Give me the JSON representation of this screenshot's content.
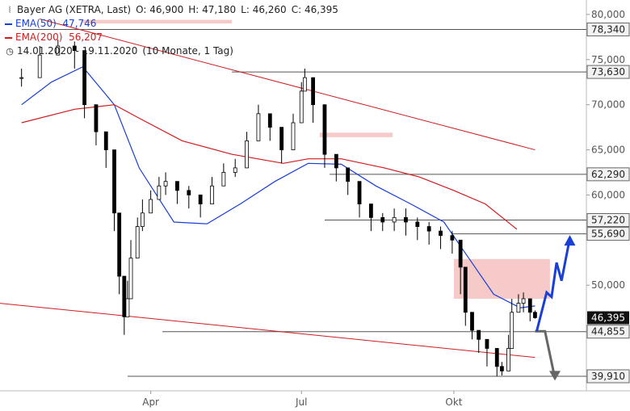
{
  "legend": {
    "symbol": "Bayer AG (XETRA, Last)",
    "ohlc": {
      "o_label": "O:",
      "o": "46,900",
      "h_label": "H:",
      "h": "47,180",
      "l_label": "L:",
      "l": "46,260",
      "c_label": "C:",
      "c": "46,395"
    },
    "ema50": {
      "label": "EMA(50)",
      "value": "47,746",
      "color": "#1a3fd6"
    },
    "ema200": {
      "label": "EMA(200)",
      "value": "56,207",
      "color": "#d11c1c"
    },
    "range": "14.01.2020 - 19.11.2020",
    "period": "(10 Monate, 1 Tag)"
  },
  "chart_data": {
    "type": "candlestick",
    "ylim": [
      38.3,
      81.6
    ],
    "y_ticks": [
      {
        "v": 80,
        "label": "80,000"
      },
      {
        "v": 75,
        "label": "75,000"
      },
      {
        "v": 70,
        "label": "70,000"
      },
      {
        "v": 65,
        "label": "65,000"
      },
      {
        "v": 60,
        "label": "60,000"
      },
      {
        "v": 50,
        "label": "50,000"
      }
    ],
    "x_ticks": [
      "Apr",
      "Jul",
      "Okt"
    ],
    "price_levels": [
      {
        "v": 78.34,
        "label": "78,340"
      },
      {
        "v": 73.63,
        "label": "73,630"
      },
      {
        "v": 62.29,
        "label": "62,290"
      },
      {
        "v": 57.22,
        "label": "57,220"
      },
      {
        "v": 55.69,
        "label": "55,690"
      },
      {
        "v": 44.855,
        "label": "44,855"
      },
      {
        "v": 39.91,
        "label": "39,910"
      }
    ],
    "last_price": {
      "v": 46.395,
      "label": "46,395"
    },
    "series": [
      {
        "name": "EMA(50)",
        "color": "#1a3fd6",
        "x": [
          "2020-01-14",
          "2020-02-01",
          "2020-02-20",
          "2020-03-10",
          "2020-03-25",
          "2020-04-15",
          "2020-05-05",
          "2020-05-25",
          "2020-06-15",
          "2020-07-05",
          "2020-07-25",
          "2020-08-15",
          "2020-09-05",
          "2020-09-25",
          "2020-10-10",
          "2020-10-25",
          "2020-11-10",
          "2020-11-19"
        ],
        "values": [
          70.0,
          72.5,
          74.2,
          70.0,
          63.0,
          57.0,
          56.8,
          59.0,
          61.5,
          63.5,
          63.4,
          61.0,
          59.0,
          57.0,
          53.0,
          49.0,
          47.5,
          47.7
        ]
      },
      {
        "name": "EMA(200)",
        "color": "#d11c1c",
        "x": [
          "2020-01-14",
          "2020-02-15",
          "2020-03-10",
          "2020-03-25",
          "2020-04-20",
          "2020-05-20",
          "2020-06-20",
          "2020-07-05",
          "2020-07-25",
          "2020-08-20",
          "2020-09-10",
          "2020-10-01",
          "2020-10-20",
          "2020-11-08"
        ],
        "values": [
          68.0,
          69.5,
          70.0,
          68.5,
          66.0,
          64.5,
          63.5,
          64.0,
          64.0,
          63.0,
          62.0,
          60.5,
          59.0,
          56.2
        ]
      }
    ],
    "candles": {
      "x": [
        "2020-01-14",
        "2020-01-25",
        "2020-02-05",
        "2020-02-15",
        "2020-02-21",
        "2020-02-28",
        "2020-03-05",
        "2020-03-10",
        "2020-03-13",
        "2020-03-16",
        "2020-03-18",
        "2020-03-20",
        "2020-03-24",
        "2020-03-27",
        "2020-04-01",
        "2020-04-06",
        "2020-04-10",
        "2020-04-17",
        "2020-04-24",
        "2020-05-01",
        "2020-05-08",
        "2020-05-15",
        "2020-05-22",
        "2020-05-29",
        "2020-06-05",
        "2020-06-12",
        "2020-06-19",
        "2020-06-26",
        "2020-07-01",
        "2020-07-03",
        "2020-07-08",
        "2020-07-15",
        "2020-07-22",
        "2020-07-29",
        "2020-08-05",
        "2020-08-12",
        "2020-08-19",
        "2020-08-26",
        "2020-09-02",
        "2020-09-09",
        "2020-09-16",
        "2020-09-23",
        "2020-09-30",
        "2020-10-05",
        "2020-10-08",
        "2020-10-12",
        "2020-10-16",
        "2020-10-21",
        "2020-10-27",
        "2020-10-30",
        "2020-11-03",
        "2020-11-05",
        "2020-11-09",
        "2020-11-12",
        "2020-11-16",
        "2020-11-19"
      ],
      "close": [
        73.0,
        75.5,
        76.5,
        76.0,
        70.0,
        67.0,
        65.0,
        58.0,
        51.0,
        46.5,
        48.5,
        53.0,
        56.5,
        58.0,
        59.5,
        61.0,
        61.5,
        60.5,
        60.0,
        59.0,
        61.0,
        62.5,
        63.0,
        66.0,
        69.0,
        67.5,
        65.0,
        68.0,
        71.5,
        73.0,
        70.0,
        64.5,
        63.0,
        61.5,
        59.0,
        57.5,
        57.0,
        57.5,
        57.0,
        56.5,
        56.0,
        55.5,
        55.0,
        52.0,
        47.0,
        45.0,
        44.0,
        43.0,
        41.0,
        40.5,
        43.0,
        47.0,
        48.0,
        48.5,
        47.0,
        46.4
      ],
      "high": [
        74.0,
        76.5,
        77.2,
        77.0,
        71.0,
        68.0,
        66.0,
        59.0,
        52.5,
        48.0,
        50.5,
        55.0,
        57.5,
        59.5,
        60.5,
        62.0,
        62.5,
        61.5,
        61.0,
        60.0,
        62.0,
        63.5,
        64.0,
        67.0,
        70.0,
        68.5,
        66.5,
        69.0,
        72.5,
        74.0,
        71.0,
        65.5,
        64.0,
        62.5,
        60.0,
        58.5,
        58.0,
        58.5,
        58.5,
        57.5,
        57.0,
        56.5,
        56.0,
        53.0,
        48.5,
        46.0,
        45.0,
        44.0,
        42.0,
        41.5,
        44.5,
        48.5,
        49.0,
        49.2,
        48.0,
        47.2
      ],
      "low": [
        72.0,
        74.5,
        75.5,
        74.0,
        68.5,
        65.5,
        63.0,
        56.0,
        49.0,
        44.5,
        46.5,
        51.0,
        55.0,
        56.0,
        58.0,
        59.5,
        60.0,
        59.0,
        58.5,
        57.5,
        59.5,
        61.0,
        62.0,
        64.5,
        67.0,
        66.0,
        63.5,
        66.0,
        69.5,
        71.5,
        68.0,
        63.0,
        61.5,
        60.0,
        57.5,
        56.0,
        56.0,
        56.0,
        55.5,
        55.0,
        54.5,
        54.0,
        53.5,
        49.0,
        45.5,
        44.0,
        42.5,
        41.0,
        39.9,
        40.0,
        42.0,
        45.0,
        47.0,
        47.0,
        46.0,
        46.3
      ]
    },
    "overlays": {
      "red_channel": {
        "upper": [
          [
            "2020-01-25",
            79.5
          ],
          [
            "2020-11-19",
            65.0
          ]
        ],
        "lower": [
          [
            "2020-01-14",
            48.0
          ],
          [
            "2020-11-19",
            42.0
          ]
        ]
      },
      "pink_zones": [
        {
          "x0": "2020-02-20",
          "x1": "2020-05-20",
          "y0": 79.0,
          "y1": 79.4
        },
        {
          "x0": "2020-07-12",
          "x1": "2020-08-25",
          "y0": 66.4,
          "y1": 66.9
        },
        {
          "x0": "2020-10-01",
          "x1": "2020-11-28",
          "y0": 48.5,
          "y1": 52.9
        }
      ],
      "blue_projection": [
        [
          "2020-11-20",
          44.9
        ],
        [
          "2020-11-26",
          49.2
        ],
        [
          "2020-11-29",
          48.7
        ],
        [
          "2020-12-02",
          52.5
        ],
        [
          "2020-12-05",
          50.5
        ],
        [
          "2020-12-10",
          55.2
        ]
      ],
      "grey_projection": [
        [
          "2020-11-19",
          44.9
        ],
        [
          "2020-11-25",
          44.9
        ],
        [
          "2020-12-01",
          39.7
        ]
      ]
    }
  }
}
